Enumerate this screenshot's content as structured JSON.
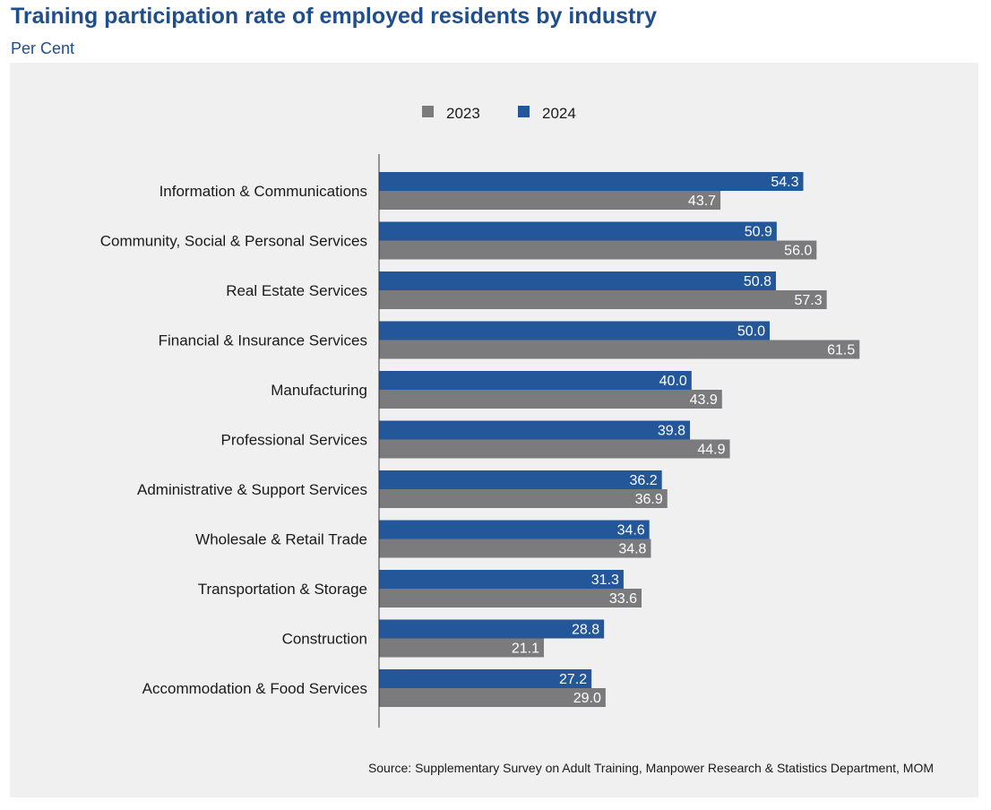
{
  "title": "Training participation rate of employed residents by industry",
  "subtitle": "Per Cent",
  "source": "Source: Supplementary Survey on Adult Training, Manpower Research & Statistics Department, MOM",
  "colors": {
    "2023": "#7b7b7d",
    "2024": "#23579a",
    "background": "#f0f0f0",
    "title": "#1f4e8c"
  },
  "chart_data": {
    "type": "bar",
    "orientation": "horizontal",
    "legend_position": "top",
    "grid": false,
    "categories": [
      "Information & Communications",
      "Community, Social & Personal Services",
      "Real Estate Services",
      "Financial & Insurance Services",
      "Manufacturing",
      "Professional Services",
      "Administrative & Support Services",
      "Wholesale & Retail Trade",
      "Transportation & Storage",
      "Construction",
      "Accommodation & Food Services"
    ],
    "series": [
      {
        "name": "2024",
        "values": [
          54.3,
          50.9,
          50.8,
          50.0,
          40.0,
          39.8,
          36.2,
          34.6,
          31.3,
          28.8,
          27.2
        ]
      },
      {
        "name": "2023",
        "values": [
          43.7,
          56.0,
          57.3,
          61.5,
          43.9,
          44.9,
          36.9,
          34.8,
          33.6,
          21.1,
          29.0
        ]
      }
    ],
    "legend": [
      "2023",
      "2024"
    ],
    "xlim": [
      0,
      75
    ]
  }
}
